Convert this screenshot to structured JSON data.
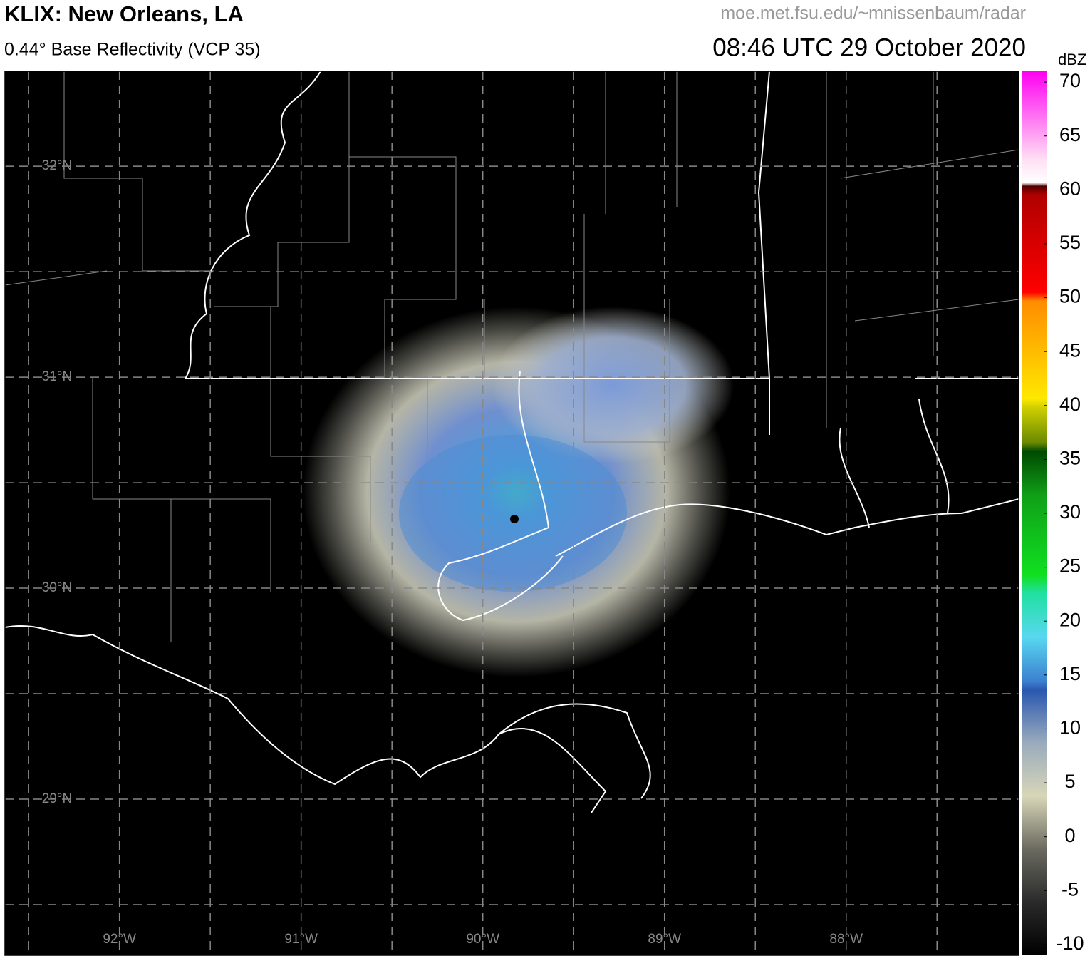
{
  "header": {
    "title": "KLIX: New Orleans, LA",
    "subtitle": "0.44° Base Reflectivity (VCP 35)",
    "source": "moe.met.fsu.edu/~mnissenbaum/radar",
    "time": "08:46 UTC 29 October 2020"
  },
  "map": {
    "ylim": [
      28.26,
      32.45
    ],
    "xlim": [
      -92.63,
      -87.05
    ],
    "yticks": [
      {
        "value": 32,
        "label": "32°N"
      },
      {
        "value": 31,
        "label": "31°N"
      },
      {
        "value": 30,
        "label": "30°N"
      },
      {
        "value": 29,
        "label": "29°N"
      }
    ],
    "xticks": [
      {
        "value": -92,
        "label": "92°W"
      },
      {
        "value": -91,
        "label": "91°W"
      },
      {
        "value": -90,
        "label": "90°W"
      },
      {
        "value": -89,
        "label": "89°W"
      },
      {
        "value": -88,
        "label": "88°W"
      }
    ]
  },
  "colorbar": {
    "unit": "dBZ",
    "lim": [
      -11,
      71
    ],
    "ticks": [
      70,
      65,
      60,
      55,
      50,
      45,
      40,
      35,
      30,
      25,
      20,
      15,
      10,
      5,
      0,
      -5,
      -10
    ]
  }
}
